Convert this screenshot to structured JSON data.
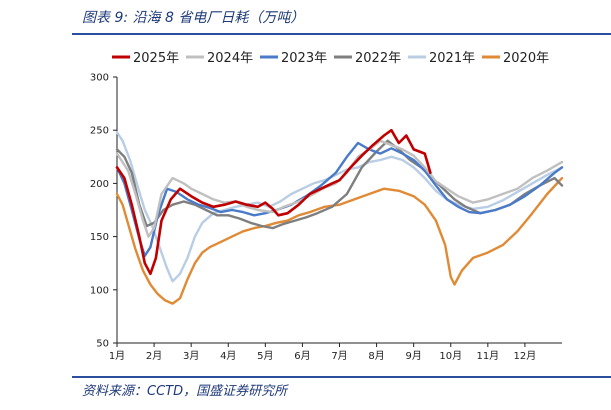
{
  "caption": "图表 9:  沿海 8 省电厂日耗（万吨）",
  "source": "资料来源：CCTD，国盛证券研究所",
  "chart_data": {
    "type": "line",
    "title": "",
    "xlabel": "",
    "ylabel": "",
    "ylim": [
      50,
      300
    ],
    "yticks": [
      50,
      100,
      150,
      200,
      250,
      300
    ],
    "xlim": [
      1,
      13
    ],
    "xticks": [
      {
        "value": 1,
        "label": "1月"
      },
      {
        "value": 2,
        "label": "2月"
      },
      {
        "value": 3,
        "label": "3月"
      },
      {
        "value": 4,
        "label": "4月"
      },
      {
        "value": 5,
        "label": "5月"
      },
      {
        "value": 6,
        "label": "6月"
      },
      {
        "value": 7,
        "label": "7月"
      },
      {
        "value": 8,
        "label": "8月"
      },
      {
        "value": 9,
        "label": "9月"
      },
      {
        "value": 10,
        "label": "10月"
      },
      {
        "value": 11,
        "label": "11月"
      },
      {
        "value": 12,
        "label": "12月"
      }
    ],
    "grid": false,
    "legend_position": "top",
    "series": [
      {
        "name": "2025年",
        "color": "#c00000",
        "width": 2.6,
        "points": [
          [
            1,
            215
          ],
          [
            1.2,
            205
          ],
          [
            1.4,
            180
          ],
          [
            1.6,
            150
          ],
          [
            1.75,
            125
          ],
          [
            1.9,
            115
          ],
          [
            2.05,
            130
          ],
          [
            2.2,
            165
          ],
          [
            2.45,
            185
          ],
          [
            2.7,
            195
          ],
          [
            3.0,
            188
          ],
          [
            3.3,
            182
          ],
          [
            3.6,
            178
          ],
          [
            3.9,
            180
          ],
          [
            4.2,
            183
          ],
          [
            4.5,
            180
          ],
          [
            4.8,
            178
          ],
          [
            5.0,
            182
          ],
          [
            5.2,
            176
          ],
          [
            5.35,
            170
          ],
          [
            5.6,
            172
          ],
          [
            5.9,
            180
          ],
          [
            6.2,
            190
          ],
          [
            6.5,
            195
          ],
          [
            6.8,
            200
          ],
          [
            7.0,
            203
          ],
          [
            7.3,
            215
          ],
          [
            7.6,
            226
          ],
          [
            7.9,
            236
          ],
          [
            8.2,
            245
          ],
          [
            8.4,
            250
          ],
          [
            8.6,
            238
          ],
          [
            8.8,
            245
          ],
          [
            9.0,
            232
          ],
          [
            9.3,
            228
          ],
          [
            9.45,
            210
          ]
        ]
      },
      {
        "name": "2024年",
        "color": "#c0c0c0",
        "width": 2.4,
        "points": [
          [
            1,
            228
          ],
          [
            1.3,
            212
          ],
          [
            1.5,
            190
          ],
          [
            1.7,
            165
          ],
          [
            1.85,
            150
          ],
          [
            2.0,
            158
          ],
          [
            2.2,
            190
          ],
          [
            2.5,
            205
          ],
          [
            2.8,
            200
          ],
          [
            3.0,
            195
          ],
          [
            3.3,
            190
          ],
          [
            3.6,
            185
          ],
          [
            3.9,
            182
          ],
          [
            4.2,
            183
          ],
          [
            4.5,
            178
          ],
          [
            4.8,
            175
          ],
          [
            5.2,
            173
          ],
          [
            5.5,
            178
          ],
          [
            5.9,
            183
          ],
          [
            6.3,
            190
          ],
          [
            6.6,
            196
          ],
          [
            6.9,
            200
          ],
          [
            7.2,
            210
          ],
          [
            7.5,
            225
          ],
          [
            7.8,
            232
          ],
          [
            8.1,
            240
          ],
          [
            8.4,
            236
          ],
          [
            8.7,
            232
          ],
          [
            9.0,
            226
          ],
          [
            9.3,
            215
          ],
          [
            9.6,
            202
          ],
          [
            9.9,
            195
          ],
          [
            10.2,
            188
          ],
          [
            10.6,
            182
          ],
          [
            11.0,
            185
          ],
          [
            11.4,
            190
          ],
          [
            11.8,
            195
          ],
          [
            12.2,
            205
          ],
          [
            12.6,
            212
          ],
          [
            13.0,
            220
          ]
        ]
      },
      {
        "name": "2023年",
        "color": "#4a7bc8",
        "width": 2.4,
        "points": [
          [
            1,
            215
          ],
          [
            1.2,
            200
          ],
          [
            1.4,
            175
          ],
          [
            1.6,
            148
          ],
          [
            1.75,
            132
          ],
          [
            1.9,
            140
          ],
          [
            2.1,
            170
          ],
          [
            2.35,
            195
          ],
          [
            2.6,
            192
          ],
          [
            2.9,
            185
          ],
          [
            3.2,
            180
          ],
          [
            3.5,
            177
          ],
          [
            3.8,
            173
          ],
          [
            4.1,
            175
          ],
          [
            4.4,
            173
          ],
          [
            4.7,
            170
          ],
          [
            5.0,
            172
          ],
          [
            5.3,
            175
          ],
          [
            5.7,
            180
          ],
          [
            6.1,
            188
          ],
          [
            6.5,
            198
          ],
          [
            6.9,
            210
          ],
          [
            7.2,
            225
          ],
          [
            7.5,
            238
          ],
          [
            7.8,
            232
          ],
          [
            8.1,
            228
          ],
          [
            8.4,
            233
          ],
          [
            8.7,
            228
          ],
          [
            9.0,
            222
          ],
          [
            9.3,
            212
          ],
          [
            9.6,
            198
          ],
          [
            9.9,
            185
          ],
          [
            10.2,
            178
          ],
          [
            10.5,
            173
          ],
          [
            10.8,
            172
          ],
          [
            11.2,
            175
          ],
          [
            11.6,
            180
          ],
          [
            12.0,
            188
          ],
          [
            12.4,
            198
          ],
          [
            12.8,
            210
          ],
          [
            13.0,
            215
          ]
        ]
      },
      {
        "name": "2022年",
        "color": "#7f7f7f",
        "width": 2.4,
        "points": [
          [
            1,
            232
          ],
          [
            1.2,
            225
          ],
          [
            1.4,
            210
          ],
          [
            1.6,
            180
          ],
          [
            1.8,
            160
          ],
          [
            2.0,
            163
          ],
          [
            2.25,
            175
          ],
          [
            2.5,
            180
          ],
          [
            2.8,
            183
          ],
          [
            3.1,
            180
          ],
          [
            3.4,
            175
          ],
          [
            3.7,
            170
          ],
          [
            4.0,
            170
          ],
          [
            4.3,
            167
          ],
          [
            4.6,
            163
          ],
          [
            4.9,
            160
          ],
          [
            5.2,
            158
          ],
          [
            5.5,
            162
          ],
          [
            5.8,
            165
          ],
          [
            6.1,
            168
          ],
          [
            6.4,
            172
          ],
          [
            6.8,
            178
          ],
          [
            7.2,
            190
          ],
          [
            7.6,
            215
          ],
          [
            8.0,
            230
          ],
          [
            8.3,
            240
          ],
          [
            8.6,
            232
          ],
          [
            8.9,
            222
          ],
          [
            9.2,
            215
          ],
          [
            9.5,
            205
          ],
          [
            9.8,
            195
          ],
          [
            10.1,
            185
          ],
          [
            10.4,
            178
          ],
          [
            10.8,
            172
          ],
          [
            11.2,
            175
          ],
          [
            11.6,
            180
          ],
          [
            12.0,
            190
          ],
          [
            12.4,
            198
          ],
          [
            12.8,
            205
          ],
          [
            13.0,
            198
          ]
        ]
      },
      {
        "name": "2021年",
        "color": "#b9cde5",
        "width": 2.4,
        "points": [
          [
            1,
            248
          ],
          [
            1.15,
            240
          ],
          [
            1.35,
            222
          ],
          [
            1.55,
            198
          ],
          [
            1.75,
            175
          ],
          [
            1.95,
            160
          ],
          [
            2.15,
            140
          ],
          [
            2.35,
            120
          ],
          [
            2.5,
            108
          ],
          [
            2.7,
            115
          ],
          [
            2.9,
            130
          ],
          [
            3.1,
            150
          ],
          [
            3.3,
            163
          ],
          [
            3.6,
            172
          ],
          [
            3.9,
            175
          ],
          [
            4.2,
            178
          ],
          [
            4.5,
            180
          ],
          [
            4.8,
            182
          ],
          [
            5.1,
            178
          ],
          [
            5.4,
            183
          ],
          [
            5.7,
            190
          ],
          [
            6.0,
            195
          ],
          [
            6.3,
            200
          ],
          [
            6.6,
            203
          ],
          [
            6.9,
            208
          ],
          [
            7.2,
            213
          ],
          [
            7.5,
            215
          ],
          [
            7.8,
            220
          ],
          [
            8.1,
            222
          ],
          [
            8.4,
            225
          ],
          [
            8.7,
            222
          ],
          [
            9.0,
            215
          ],
          [
            9.3,
            205
          ],
          [
            9.6,
            193
          ],
          [
            9.9,
            185
          ],
          [
            10.2,
            180
          ],
          [
            10.6,
            176
          ],
          [
            11.0,
            178
          ],
          [
            11.4,
            184
          ],
          [
            11.8,
            192
          ],
          [
            12.2,
            200
          ],
          [
            12.6,
            208
          ],
          [
            13.0,
            215
          ]
        ]
      },
      {
        "name": "2020年",
        "color": "#e08a35",
        "width": 2.4,
        "points": [
          [
            1,
            190
          ],
          [
            1.15,
            180
          ],
          [
            1.3,
            162
          ],
          [
            1.5,
            138
          ],
          [
            1.7,
            118
          ],
          [
            1.9,
            105
          ],
          [
            2.1,
            96
          ],
          [
            2.3,
            90
          ],
          [
            2.5,
            87
          ],
          [
            2.7,
            92
          ],
          [
            2.9,
            110
          ],
          [
            3.1,
            125
          ],
          [
            3.3,
            135
          ],
          [
            3.5,
            140
          ],
          [
            3.8,
            145
          ],
          [
            4.1,
            150
          ],
          [
            4.4,
            155
          ],
          [
            4.7,
            158
          ],
          [
            5.0,
            160
          ],
          [
            5.3,
            163
          ],
          [
            5.6,
            165
          ],
          [
            5.9,
            170
          ],
          [
            6.2,
            173
          ],
          [
            6.6,
            178
          ],
          [
            7.0,
            180
          ],
          [
            7.4,
            185
          ],
          [
            7.8,
            190
          ],
          [
            8.2,
            195
          ],
          [
            8.6,
            193
          ],
          [
            9.0,
            188
          ],
          [
            9.3,
            180
          ],
          [
            9.6,
            165
          ],
          [
            9.85,
            142
          ],
          [
            10.0,
            112
          ],
          [
            10.1,
            105
          ],
          [
            10.3,
            118
          ],
          [
            10.6,
            130
          ],
          [
            11.0,
            135
          ],
          [
            11.4,
            142
          ],
          [
            11.8,
            155
          ],
          [
            12.2,
            172
          ],
          [
            12.6,
            190
          ],
          [
            13.0,
            205
          ]
        ]
      }
    ]
  }
}
